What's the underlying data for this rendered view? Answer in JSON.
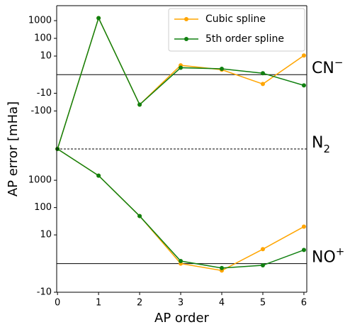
{
  "chart_data": [
    {
      "type": "line",
      "ylabel": "AP error [mHa]",
      "yscale": "symlog",
      "annotation": {
        "text": "CN",
        "sup": "−"
      },
      "xlim": [
        -0.02,
        6.07
      ],
      "ylim": [
        -14000,
        7000
      ],
      "yticks": [
        -100,
        -10,
        10,
        100,
        1000
      ],
      "x": [
        0,
        1,
        2,
        3,
        4,
        5,
        6
      ],
      "series": [
        {
          "name": "Cubic spline",
          "color": "#ffa500",
          "values": [
            -14000,
            1400,
            -44,
            3,
            1.7,
            -3,
            10.7
          ]
        },
        {
          "name": "5th order spline",
          "color": "#108010",
          "values": [
            -14000,
            1400,
            -44,
            2.2,
            1.9,
            1.07,
            -3.6
          ]
        }
      ],
      "legend": "upper right"
    },
    {
      "type": "line",
      "xlabel": "AP order",
      "yscale": "symlog",
      "annotation": {
        "text": "NO",
        "sup": "+"
      },
      "boundary_annotation": {
        "text": "N",
        "sub": "2"
      },
      "xlim": [
        -0.02,
        6.07
      ],
      "ylim": [
        -10,
        14000
      ],
      "yticks": [
        -10,
        10,
        100,
        1000
      ],
      "xticks": [
        0,
        1,
        2,
        3,
        4,
        5,
        6
      ],
      "x": [
        0,
        1,
        2,
        3,
        4,
        5,
        6
      ],
      "series": [
        {
          "color": "#ffa500",
          "values": [
            14000,
            1480,
            49,
            0,
            -1.6,
            3,
            20
          ]
        },
        {
          "color": "#108010",
          "values": [
            14000,
            1480,
            49,
            1.1,
            -1.3,
            -1.03,
            2.8
          ]
        }
      ]
    }
  ]
}
